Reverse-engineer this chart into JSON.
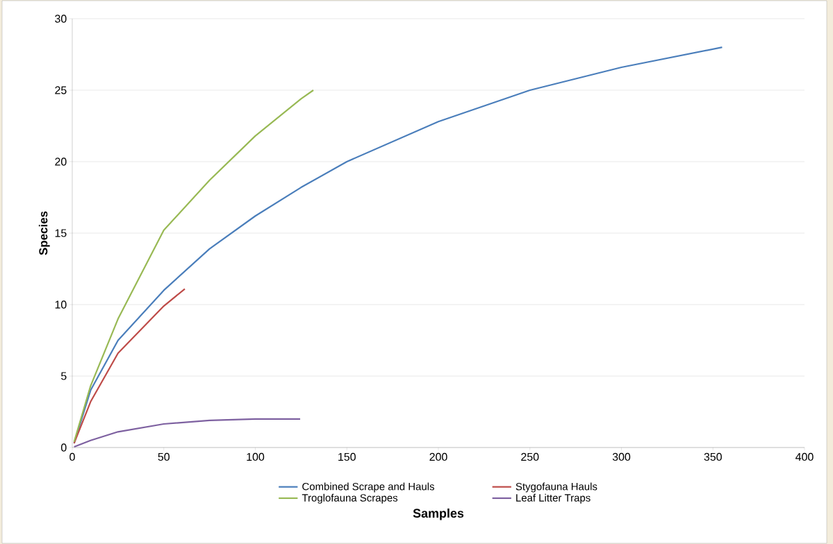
{
  "chart_data": {
    "type": "line",
    "xlabel": "Samples",
    "ylabel": "Species",
    "xlim": [
      0,
      400
    ],
    "xticks": [
      0,
      50,
      100,
      150,
      200,
      250,
      300,
      350,
      400
    ],
    "ylim": [
      0,
      30
    ],
    "yticks": [
      0,
      5,
      10,
      15,
      20,
      25,
      30
    ],
    "grid": "y",
    "legend": "bottom",
    "marker": "none",
    "line_style": "solid",
    "series": [
      {
        "name": "Combined Scrape and Hauls",
        "color": "#4a7ebb",
        "x": [
          1,
          10,
          25,
          50,
          75,
          100,
          125,
          150,
          200,
          250,
          300,
          355
        ],
        "values": [
          0.3,
          4,
          7.5,
          11,
          13.9,
          16.2,
          18.2,
          20,
          22.8,
          25,
          26.6,
          28
        ]
      },
      {
        "name": "Stygofauna Hauls",
        "color": "#be4b48",
        "x": [
          1,
          10,
          25,
          50,
          61.5
        ],
        "values": [
          0.3,
          3.2,
          6.6,
          9.9,
          11.1
        ]
      },
      {
        "name": "Troglofauna Scrapes",
        "color": "#98b954",
        "x": [
          1,
          10,
          25,
          50,
          75,
          100,
          125,
          131.7
        ],
        "values": [
          0.4,
          4.3,
          9,
          15.2,
          18.7,
          21.8,
          24.4,
          25
        ]
      },
      {
        "name": "Leaf Litter Traps",
        "color": "#7d60a0",
        "x": [
          1,
          10,
          25,
          50,
          75,
          100,
          124.5
        ],
        "values": [
          0.05,
          0.5,
          1.1,
          1.65,
          1.9,
          2,
          2
        ]
      }
    ]
  }
}
